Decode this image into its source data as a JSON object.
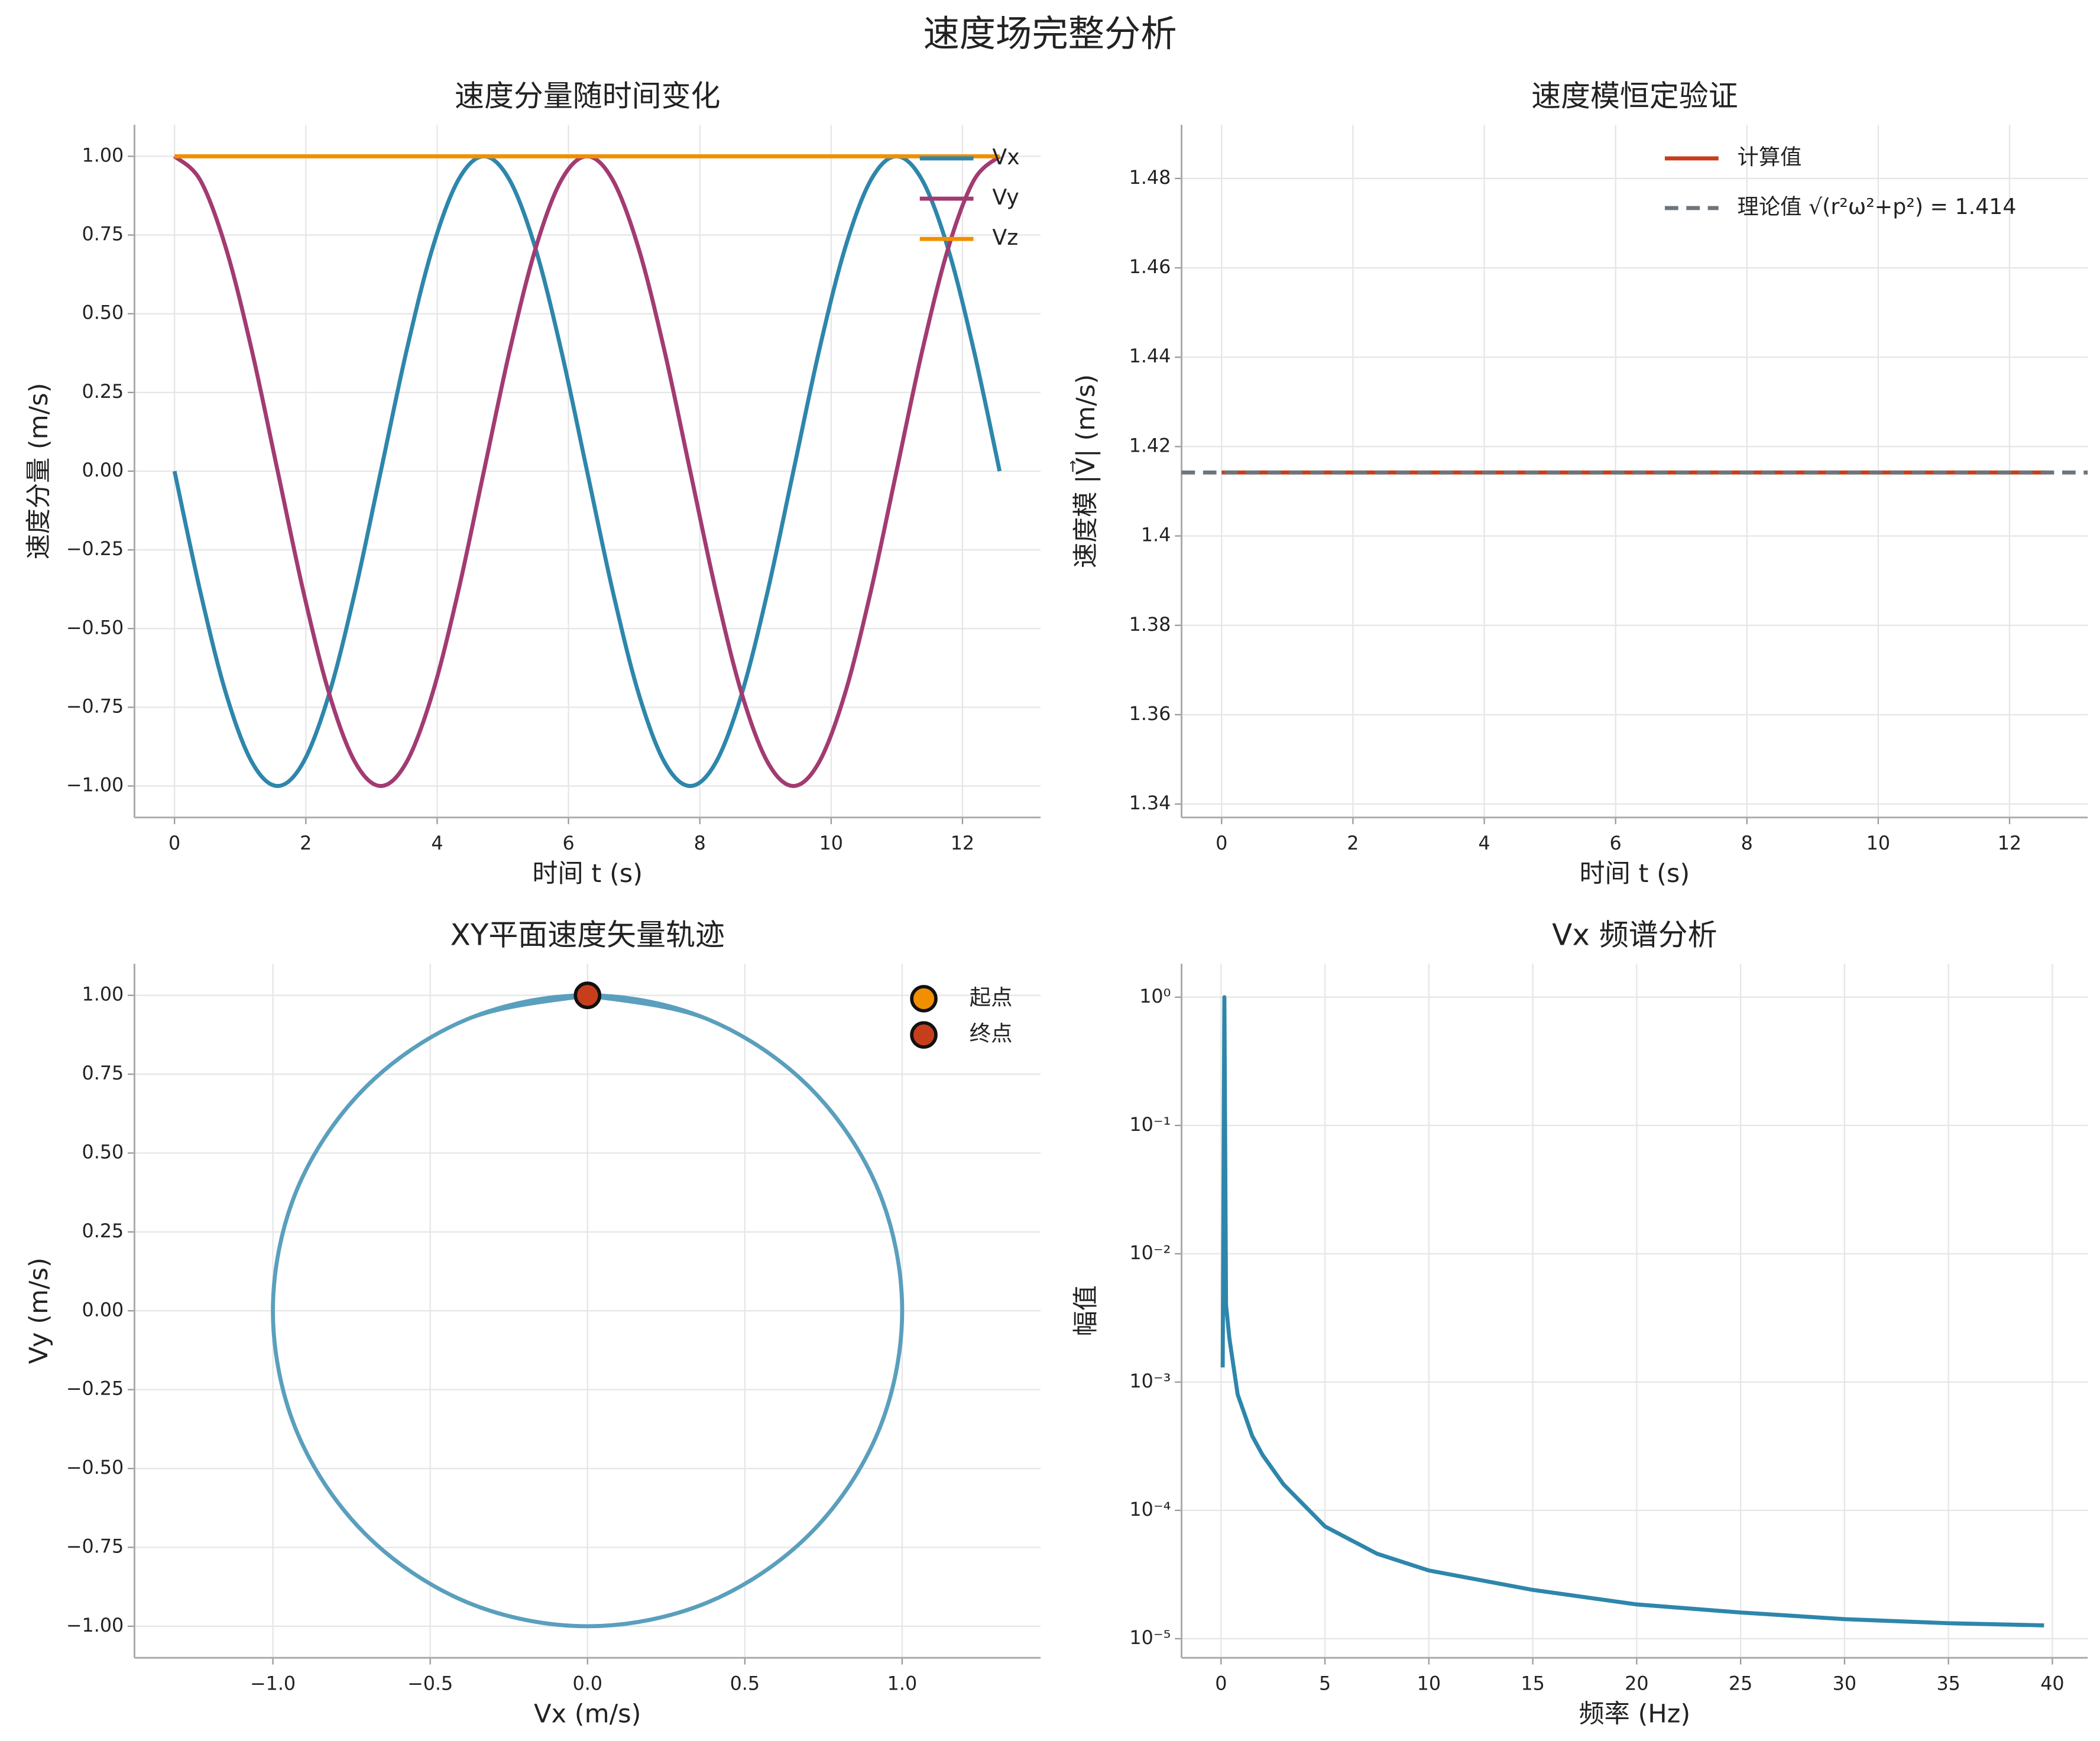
{
  "title": "速度场完整分析",
  "chart_data": [
    {
      "type": "line",
      "title": "速度分量随时间变化",
      "xlabel": "时间 t (s)",
      "ylabel": "速度分量 (m/s)",
      "x": [
        0,
        0.393,
        0.785,
        1.178,
        1.571,
        1.963,
        2.356,
        2.749,
        3.142,
        3.534,
        3.927,
        4.32,
        4.712,
        5.105,
        5.498,
        5.89,
        6.283,
        6.676,
        7.069,
        7.461,
        7.854,
        8.247,
        8.639,
        9.032,
        9.425,
        9.817,
        10.21,
        10.603,
        10.996,
        11.388,
        11.781,
        12.174,
        12.566
      ],
      "series": [
        {
          "name": "Vx",
          "color": "#2e86ab",
          "values": [
            0,
            -0.383,
            -0.707,
            -0.924,
            -1,
            -0.924,
            -0.707,
            -0.383,
            0,
            0.383,
            0.707,
            0.924,
            1,
            0.924,
            0.707,
            0.383,
            0,
            -0.383,
            -0.707,
            -0.924,
            -1,
            -0.924,
            -0.707,
            -0.383,
            0,
            0.383,
            0.707,
            0.924,
            1,
            0.924,
            0.707,
            0.383,
            0
          ]
        },
        {
          "name": "Vy",
          "color": "#a23b72",
          "values": [
            1,
            0.924,
            0.707,
            0.383,
            0,
            -0.383,
            -0.707,
            -0.924,
            -1,
            -0.924,
            -0.707,
            -0.383,
            0,
            0.383,
            0.707,
            0.924,
            1,
            0.924,
            0.707,
            0.383,
            0,
            -0.383,
            -0.707,
            -0.924,
            -1,
            -0.924,
            -0.707,
            -0.383,
            0,
            0.383,
            0.707,
            0.924,
            1
          ]
        },
        {
          "name": "Vz",
          "color": "#f18f01",
          "values": [
            1,
            1,
            1,
            1,
            1,
            1,
            1,
            1,
            1,
            1,
            1,
            1,
            1,
            1,
            1,
            1,
            1,
            1,
            1,
            1,
            1,
            1,
            1,
            1,
            1,
            1,
            1,
            1,
            1,
            1,
            1,
            1,
            1
          ]
        }
      ],
      "xlim": [
        -0.61,
        13.19
      ],
      "xticks": [
        0,
        2,
        4,
        6,
        8,
        10,
        12
      ],
      "ylim": [
        -1.1,
        1.1
      ],
      "yticks": [
        {
          "value": -1,
          "label": "−1.00"
        },
        {
          "value": -0.75,
          "label": "−0.75"
        },
        {
          "value": -0.5,
          "label": "−0.50"
        },
        {
          "value": -0.25,
          "label": "−0.25"
        },
        {
          "value": 0,
          "label": "0.00"
        },
        0.25,
        {
          "value": 0.5,
          "label": "0.50"
        },
        0.75,
        {
          "value": 1,
          "label": "1.00"
        }
      ],
      "grid": true,
      "legend": "upper right"
    },
    {
      "type": "line",
      "title": "速度模恒定验证",
      "xlabel": "时间 t (s)",
      "ylabel": "速度模 |V⃗| (m/s)",
      "series": [
        {
          "name": "计算值",
          "color": "#c73e1d",
          "x": [
            0,
            12.566
          ],
          "values": [
            1.4142,
            1.4142
          ]
        },
        {
          "name": "理论值 √(r²ω²+p²) = 1.414",
          "color": "#6c757d",
          "values": [
            1.4142
          ],
          "hline": true,
          "style": "dashed"
        }
      ],
      "xlim": [
        -0.61,
        13.19
      ],
      "xticks": [
        0,
        2,
        4,
        6,
        8,
        10,
        12
      ],
      "ylim": [
        1.337,
        1.492
      ],
      "yticks": [
        1.34,
        1.36,
        1.38,
        1.4,
        1.42,
        1.44,
        1.46,
        1.48
      ],
      "grid": true,
      "legend": "upper right"
    },
    {
      "type": "line",
      "title": "XY平面速度矢量轨迹",
      "xlabel": "Vx (m/s)",
      "ylabel": "Vy (m/s)",
      "series": [
        {
          "color": "#5a9fbd",
          "x": [
            0,
            -0.383,
            -0.707,
            -0.924,
            -1,
            -0.924,
            -0.707,
            -0.383,
            0,
            0.383,
            0.707,
            0.924,
            1,
            0.924,
            0.707,
            0.383,
            0,
            -0.383,
            -0.707,
            -0.924,
            -1,
            -0.924,
            -0.707,
            -0.383,
            0,
            0.383,
            0.707,
            0.924,
            1,
            0.924,
            0.707,
            0.383,
            0
          ],
          "values": [
            1,
            0.924,
            0.707,
            0.383,
            0,
            -0.383,
            -0.707,
            -0.924,
            -1,
            -0.924,
            -0.707,
            -0.383,
            0,
            0.383,
            0.707,
            0.924,
            1,
            0.924,
            0.707,
            0.383,
            0,
            -0.383,
            -0.707,
            -0.924,
            -1,
            -0.924,
            -0.707,
            -0.383,
            0,
            0.383,
            0.707,
            0.924,
            1
          ]
        },
        {
          "name": "起点",
          "color": "#f18f01",
          "x": [
            0
          ],
          "values": [
            1
          ],
          "marker": true
        },
        {
          "name": "终点",
          "color": "#c73e1d",
          "x": [
            0
          ],
          "values": [
            1
          ],
          "marker": true
        }
      ],
      "xlim": [
        -1.44,
        1.44
      ],
      "xticks": [
        {
          "value": -1,
          "label": "−1.0"
        },
        {
          "value": -0.5,
          "label": "−0.5"
        },
        {
          "value": 0,
          "label": "0.0"
        },
        0.5,
        {
          "value": 1,
          "label": "1.0"
        }
      ],
      "ylim": [
        -1.1,
        1.1
      ],
      "yticks": [
        {
          "value": -1,
          "label": "−1.00"
        },
        {
          "value": -0.75,
          "label": "−0.75"
        },
        {
          "value": -0.5,
          "label": "−0.50"
        },
        {
          "value": -0.25,
          "label": "−0.25"
        },
        {
          "value": 0,
          "label": "0.00"
        },
        0.25,
        {
          "value": 0.5,
          "label": "0.50"
        },
        0.75,
        {
          "value": 1,
          "label": "1.00"
        }
      ],
      "grid": true,
      "legend": "upper right"
    },
    {
      "type": "line",
      "title": "Vx 频谱分析",
      "xlabel": "频率 (Hz)",
      "ylabel": "幅值",
      "ylog": true,
      "x": [
        0.08,
        0.16,
        0.24,
        0.4,
        0.8,
        1.5,
        2,
        3,
        5,
        7.5,
        10,
        15,
        20,
        25,
        30,
        35,
        39.6
      ],
      "series": [
        {
          "color": "#2e86ab",
          "values": [
            0.0013,
            1.0,
            0.004,
            0.0022,
            0.0008,
            0.00038,
            0.00027,
            0.00016,
            7.5e-05,
            4.6e-05,
            3.4e-05,
            2.4e-05,
            1.85e-05,
            1.6e-05,
            1.42e-05,
            1.32e-05,
            1.27e-05
          ]
        }
      ],
      "xlim": [
        -1.9,
        41.7
      ],
      "xticks": [
        0,
        5,
        10,
        15,
        20,
        25,
        30,
        35,
        40
      ],
      "ylim": [
        7.1e-06,
        1.82
      ],
      "yticks": [
        {
          "value": 1e-05,
          "label": "10⁻⁵"
        },
        {
          "value": 0.0001,
          "label": "10⁻⁴"
        },
        {
          "value": 0.001,
          "label": "10⁻³"
        },
        {
          "value": 0.01,
          "label": "10⁻²"
        },
        {
          "value": 0.1,
          "label": "10⁻¹"
        },
        {
          "value": 1,
          "label": "10⁰"
        }
      ],
      "grid": true
    }
  ]
}
